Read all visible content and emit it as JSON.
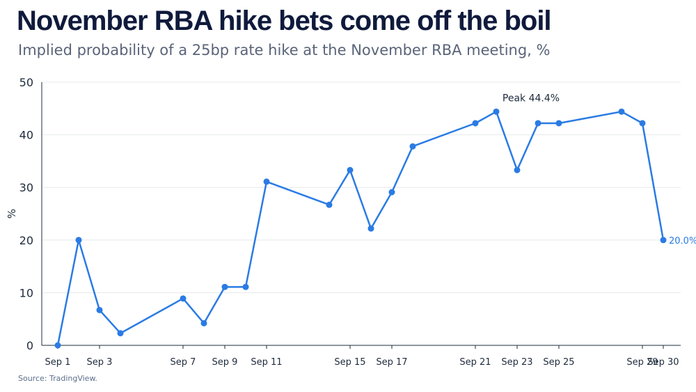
{
  "header": {
    "title": "November RBA hike bets come off the boil",
    "subtitle": "Implied probability of a 25bp rate hike at the November RBA meeting, %"
  },
  "footer": {
    "source": "Source: TradingView."
  },
  "colors": {
    "line": "#2a7be4",
    "title": "#0f1a3c",
    "subtitle": "#5a6478",
    "axis": "#1e2b3c",
    "grid": "#e6e8ec"
  },
  "chart_data": {
    "type": "line",
    "ylabel": "%",
    "ylim": [
      0,
      50
    ],
    "yticks": [
      0,
      10,
      20,
      30,
      40,
      50
    ],
    "grid": "horizontal",
    "xticks": [
      "Sep 1",
      "Sep 3",
      "Sep 7",
      "Sep 9",
      "Sep 11",
      "Sep 15",
      "Sep 17",
      "Sep 21",
      "Sep 23",
      "Sep 25",
      "Sep 29",
      "Sep 30"
    ],
    "series": [
      {
        "values": [
          {
            "x": "Sep 1",
            "y": 0.0
          },
          {
            "x": "Sep 2",
            "y": 20.0
          },
          {
            "x": "Sep 3",
            "y": 6.7
          },
          {
            "x": "Sep 4",
            "y": 2.3
          },
          {
            "x": "Sep 7",
            "y": 8.9
          },
          {
            "x": "Sep 8",
            "y": 4.2
          },
          {
            "x": "Sep 9",
            "y": 11.1
          },
          {
            "x": "Sep 10",
            "y": 11.1
          },
          {
            "x": "Sep 11",
            "y": 31.1
          },
          {
            "x": "Sep 14",
            "y": 26.7
          },
          {
            "x": "Sep 15",
            "y": 33.3
          },
          {
            "x": "Sep 16",
            "y": 22.2
          },
          {
            "x": "Sep 17",
            "y": 29.1
          },
          {
            "x": "Sep 18",
            "y": 37.8
          },
          {
            "x": "Sep 21",
            "y": 42.2
          },
          {
            "x": "Sep 22",
            "y": 44.4
          },
          {
            "x": "Sep 23",
            "y": 33.3
          },
          {
            "x": "Sep 24",
            "y": 42.2
          },
          {
            "x": "Sep 25",
            "y": 42.2
          },
          {
            "x": "Sep 28",
            "y": 44.4
          },
          {
            "x": "Sep 29",
            "y": 42.2
          },
          {
            "x": "Sep 30",
            "y": 20.0
          }
        ]
      }
    ],
    "annotations": {
      "peak": "Peak 44.4%",
      "last": "20.0%"
    }
  }
}
